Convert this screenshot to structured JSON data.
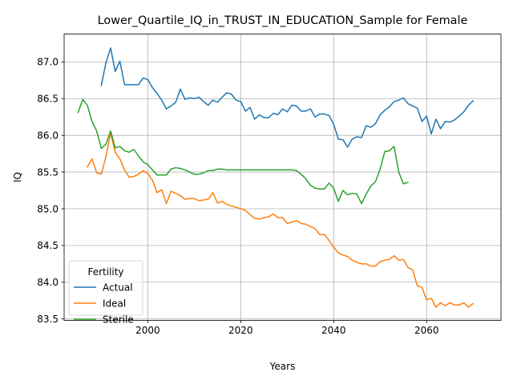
{
  "chart_data": {
    "type": "line",
    "title": "Lower_Quartile_IQ_in_TRUST_IN_EDUCATION_Sample for Female",
    "xlabel": "Years",
    "ylabel": "IQ",
    "xlim": [
      1982,
      2076
    ],
    "ylim": [
      83.48,
      87.38
    ],
    "xticks": [
      2000,
      2020,
      2040,
      2060
    ],
    "yticks": [
      83.5,
      84.0,
      84.5,
      85.0,
      85.5,
      86.0,
      86.5,
      87.0
    ],
    "ytick_labels": [
      "83.5",
      "84.0",
      "84.5",
      "85.0",
      "85.5",
      "86.0",
      "86.5",
      "87.0"
    ],
    "grid": true,
    "legend": {
      "title": "Fertility",
      "location": "lower-left"
    },
    "series": [
      {
        "name": "Actual",
        "color": "#1f77b4",
        "x": [
          1990,
          1991,
          1992,
          1993,
          1994,
          1995,
          1996,
          1997,
          1998,
          1999,
          2000,
          2001,
          2002,
          2003,
          2004,
          2005,
          2006,
          2007,
          2008,
          2009,
          2010,
          2011,
          2012,
          2013,
          2014,
          2015,
          2016,
          2017,
          2018,
          2019,
          2020,
          2021,
          2022,
          2023,
          2024,
          2025,
          2026,
          2027,
          2028,
          2029,
          2030,
          2031,
          2032,
          2033,
          2034,
          2035,
          2036,
          2037,
          2038,
          2039,
          2040,
          2041,
          2042,
          2043,
          2044,
          2045,
          2046,
          2047,
          2048,
          2049,
          2050,
          2051,
          2052,
          2053,
          2054,
          2055,
          2056,
          2057,
          2058,
          2059,
          2060,
          2061,
          2062,
          2063,
          2064,
          2065,
          2066,
          2067,
          2068,
          2069,
          2070
        ],
        "values": [
          86.68,
          86.99,
          87.19,
          86.87,
          87.01,
          86.69,
          86.69,
          86.69,
          86.69,
          86.78,
          86.76,
          86.65,
          86.57,
          86.48,
          86.36,
          86.4,
          86.45,
          86.63,
          86.49,
          86.51,
          86.5,
          86.52,
          86.46,
          86.41,
          86.48,
          86.45,
          86.52,
          86.58,
          86.56,
          86.48,
          86.46,
          86.33,
          86.38,
          86.22,
          86.28,
          86.24,
          86.24,
          86.3,
          86.28,
          86.36,
          86.32,
          86.41,
          86.4,
          86.33,
          86.33,
          86.36,
          86.25,
          86.29,
          86.29,
          86.27,
          86.15,
          85.95,
          85.94,
          85.84,
          85.95,
          85.98,
          85.97,
          86.13,
          86.11,
          86.16,
          86.28,
          86.34,
          86.39,
          86.46,
          86.48,
          86.51,
          86.43,
          86.4,
          86.37,
          86.19,
          86.26,
          86.02,
          86.22,
          86.09,
          86.19,
          86.18,
          86.21,
          86.26,
          86.32,
          86.41,
          86.47
        ]
      },
      {
        "name": "Ideal",
        "color": "#ff7f0e",
        "x": [
          1987,
          1988,
          1989,
          1990,
          1991,
          1992,
          1993,
          1994,
          1995,
          1996,
          1997,
          1998,
          1999,
          2000,
          2001,
          2002,
          2003,
          2004,
          2005,
          2006,
          2007,
          2008,
          2009,
          2010,
          2011,
          2012,
          2013,
          2014,
          2015,
          2016,
          2017,
          2018,
          2019,
          2020,
          2021,
          2022,
          2023,
          2024,
          2025,
          2026,
          2027,
          2028,
          2029,
          2030,
          2031,
          2032,
          2033,
          2034,
          2035,
          2036,
          2037,
          2038,
          2039,
          2040,
          2041,
          2042,
          2043,
          2044,
          2045,
          2046,
          2047,
          2048,
          2049,
          2050,
          2051,
          2052,
          2053,
          2054,
          2055,
          2056,
          2057,
          2058,
          2059,
          2060,
          2061,
          2062,
          2063,
          2064,
          2065,
          2066,
          2067,
          2068,
          2069,
          2070
        ],
        "values": [
          85.57,
          85.68,
          85.49,
          85.47,
          85.71,
          86.03,
          85.77,
          85.68,
          85.53,
          85.43,
          85.44,
          85.47,
          85.52,
          85.48,
          85.39,
          85.22,
          85.26,
          85.07,
          85.24,
          85.21,
          85.18,
          85.13,
          85.14,
          85.14,
          85.11,
          85.12,
          85.13,
          85.22,
          85.08,
          85.1,
          85.06,
          85.04,
          85.02,
          85.0,
          84.98,
          84.92,
          84.87,
          84.86,
          84.88,
          84.89,
          84.93,
          84.88,
          84.88,
          84.8,
          84.82,
          84.84,
          84.8,
          84.79,
          84.76,
          84.73,
          84.65,
          84.65,
          84.57,
          84.48,
          84.4,
          84.37,
          84.35,
          84.3,
          84.27,
          84.25,
          84.25,
          84.22,
          84.22,
          84.28,
          84.3,
          84.31,
          84.36,
          84.3,
          84.31,
          84.2,
          84.17,
          83.95,
          83.93,
          83.76,
          83.78,
          83.66,
          83.72,
          83.68,
          83.72,
          83.69,
          83.69,
          83.72,
          83.66,
          83.71
        ]
      },
      {
        "name": "Sterile",
        "color": "#2ca02c",
        "x": [
          1985,
          1986,
          1987,
          1988,
          1989,
          1990,
          1991,
          1992,
          1993,
          1994,
          1995,
          1996,
          1997,
          1998,
          1999,
          2000,
          2001,
          2002,
          2003,
          2004,
          2005,
          2006,
          2007,
          2008,
          2009,
          2010,
          2011,
          2012,
          2013,
          2014,
          2015,
          2016,
          2017,
          2018,
          2019,
          2020,
          2021,
          2022,
          2023,
          2024,
          2025,
          2026,
          2027,
          2028,
          2029,
          2030,
          2031,
          2032,
          2033,
          2034,
          2035,
          2036,
          2037,
          2038,
          2039,
          2040,
          2041,
          2042,
          2043,
          2044,
          2045,
          2046,
          2047,
          2048,
          2049,
          2050,
          2051,
          2052,
          2053,
          2054,
          2055,
          2056
        ],
        "values": [
          86.31,
          86.49,
          86.41,
          86.19,
          86.06,
          85.82,
          85.88,
          86.06,
          85.83,
          85.85,
          85.79,
          85.77,
          85.81,
          85.72,
          85.64,
          85.6,
          85.53,
          85.46,
          85.46,
          85.46,
          85.54,
          85.56,
          85.55,
          85.53,
          85.5,
          85.47,
          85.47,
          85.49,
          85.52,
          85.52,
          85.54,
          85.54,
          85.53,
          85.53,
          85.53,
          85.53,
          85.53,
          85.53,
          85.53,
          85.53,
          85.53,
          85.53,
          85.53,
          85.53,
          85.53,
          85.53,
          85.53,
          85.52,
          85.47,
          85.41,
          85.32,
          85.28,
          85.27,
          85.27,
          85.35,
          85.28,
          85.1,
          85.25,
          85.19,
          85.21,
          85.2,
          85.07,
          85.2,
          85.31,
          85.37,
          85.54,
          85.78,
          85.79,
          85.85,
          85.5,
          85.34,
          85.36
        ]
      }
    ]
  }
}
